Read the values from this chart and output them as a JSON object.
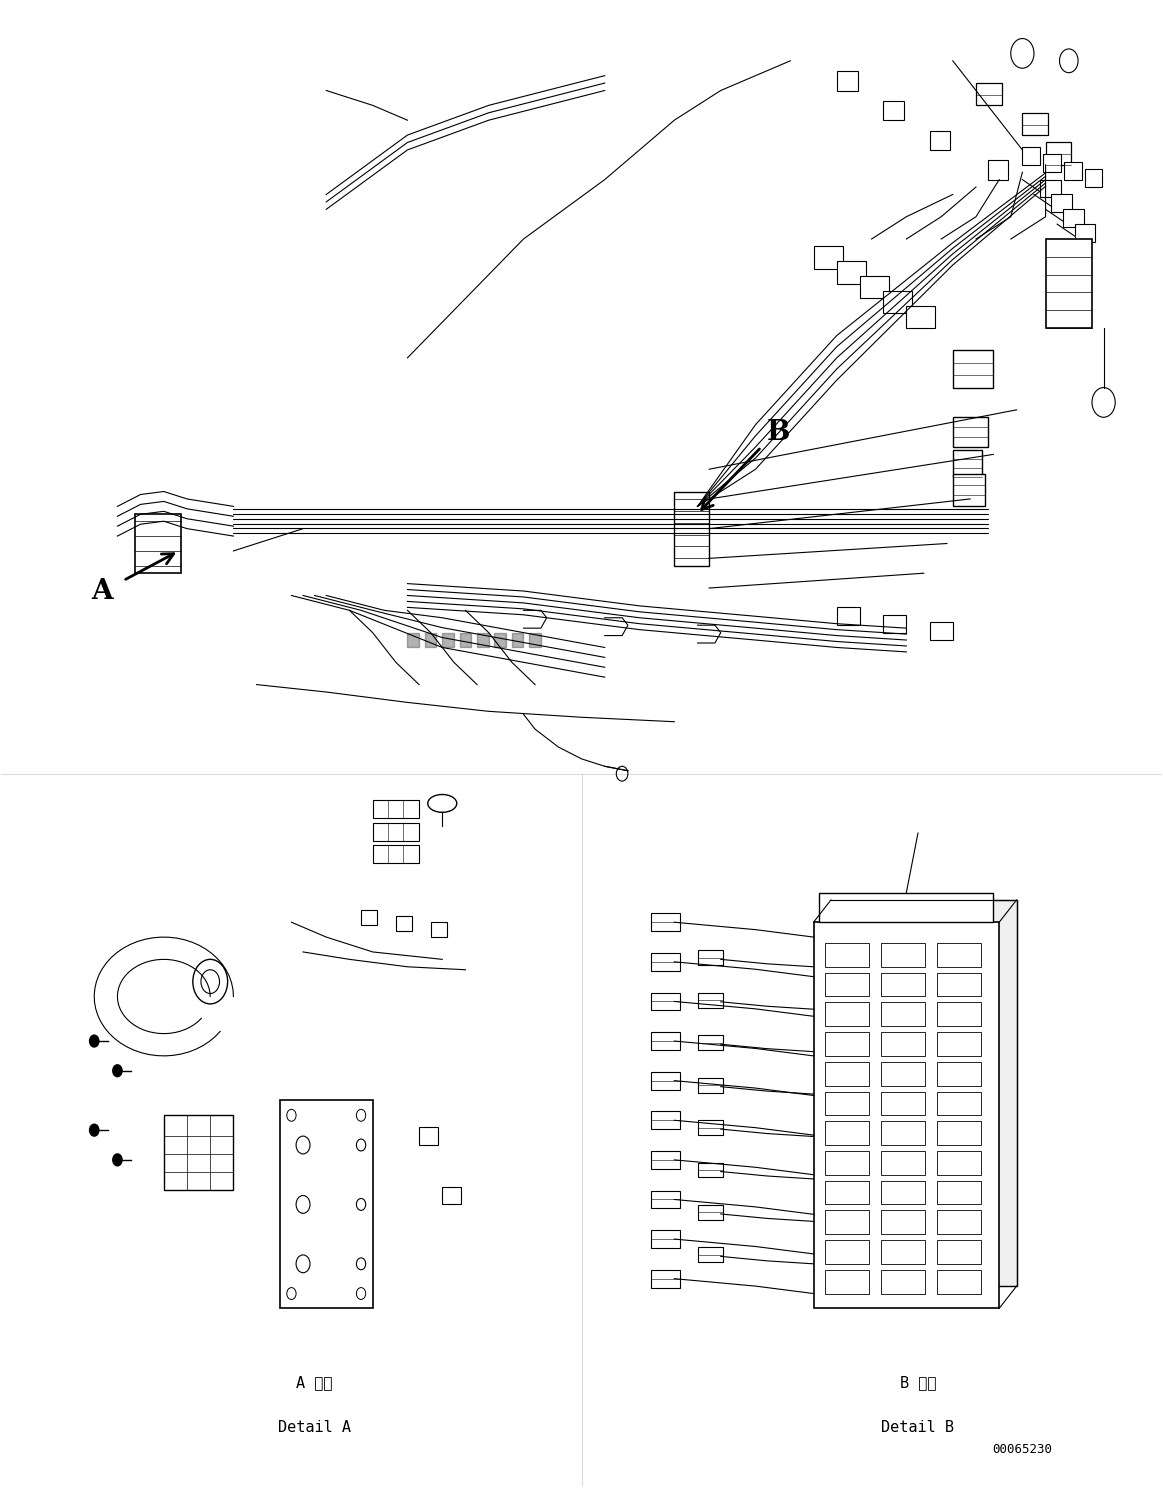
{
  "figure_width": 11.63,
  "figure_height": 14.88,
  "dpi": 100,
  "background_color": "#ffffff",
  "part_number": "00065230",
  "label_A": "A",
  "label_B": "B",
  "detail_A_jp": "A 詳細",
  "detail_A_en": "Detail A",
  "detail_B_jp": "B 詳細",
  "detail_B_en": "Detail B",
  "line_color": "#000000",
  "arrow_color": "#000000",
  "font_size_labels": 14,
  "font_size_detail": 12,
  "font_size_partnum": 10
}
